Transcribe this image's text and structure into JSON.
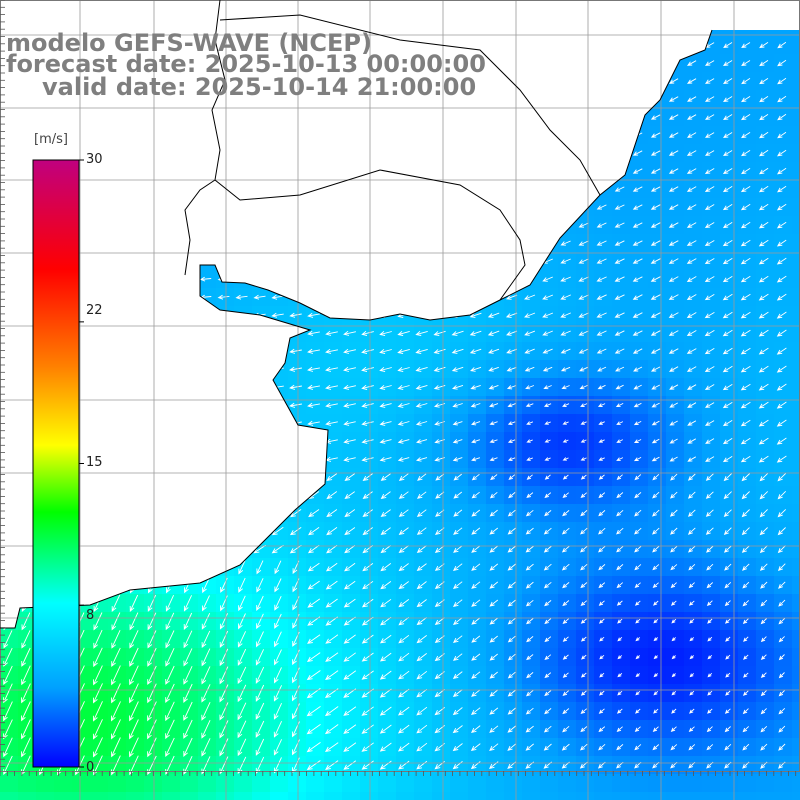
{
  "title": {
    "model": "modelo GEFS-WAVE (NCEP)",
    "forecast": "forecast date: 2025-10-13 00:00:00",
    "valid": "valid date: 2025-10-14 21:00:00"
  },
  "colorbar": {
    "unit": "[m/s]",
    "min": 0,
    "max": 30,
    "tick_labels": [
      "30",
      "22",
      "15",
      "8",
      "0"
    ],
    "tick_values": [
      30,
      22,
      15,
      8,
      0
    ],
    "stops": [
      "#0000ff",
      "#00a0ff",
      "#00ffff",
      "#00ff00",
      "#ffff00",
      "#ff8000",
      "#ff0000",
      "#c0007f"
    ]
  },
  "map": {
    "land_color": "#ffffff",
    "grid_color": "#9a9a9a",
    "coast_color": "#000000",
    "arrow_color": "#ffffff"
  }
}
